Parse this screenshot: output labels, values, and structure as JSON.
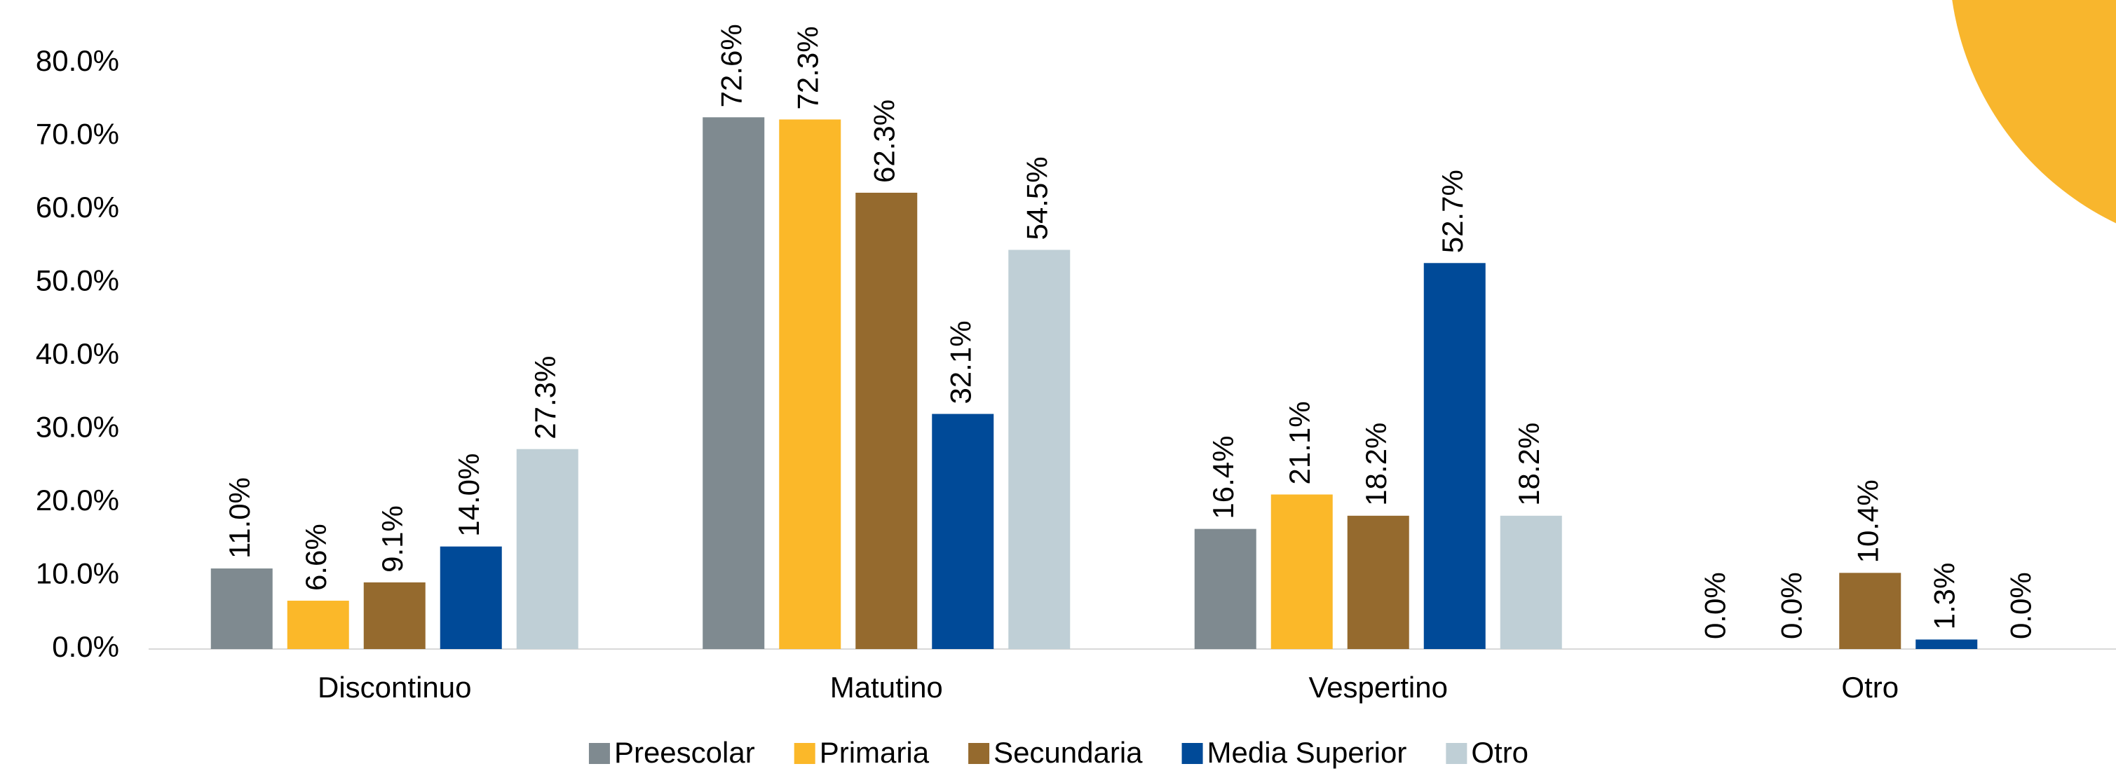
{
  "chart_data": {
    "type": "bar",
    "categories": [
      "Discontinuo",
      "Matutino",
      "Vespertino",
      "Otro"
    ],
    "series": [
      {
        "name": "Preescolar",
        "color": "#7f8a90",
        "values": [
          11.0,
          72.6,
          16.4,
          0.0
        ],
        "value_labels": [
          "11.0%",
          "72.6%",
          "16.4%",
          "0.0%"
        ]
      },
      {
        "name": "Primaria",
        "color": "#fbb829",
        "values": [
          6.6,
          72.3,
          21.1,
          0.0
        ],
        "value_labels": [
          "6.6%",
          "72.3%",
          "21.1%",
          "0.0%"
        ]
      },
      {
        "name": "Secundaria",
        "color": "#956a2e",
        "values": [
          9.1,
          62.3,
          18.2,
          10.4
        ],
        "value_labels": [
          "9.1%",
          "62.3%",
          "18.2%",
          "10.4%"
        ]
      },
      {
        "name": "Media Superior",
        "color": "#004a98",
        "values": [
          14.0,
          32.1,
          52.7,
          1.3
        ],
        "value_labels": [
          "14.0%",
          "32.1%",
          "52.7%",
          "1.3%"
        ]
      },
      {
        "name": "Otro",
        "color": "#bfcfd6",
        "values": [
          27.3,
          54.5,
          18.2,
          0.0
        ],
        "value_labels": [
          "27.3%",
          "54.5%",
          "18.2%",
          "0.0%"
        ]
      }
    ],
    "ylim": [
      0,
      80
    ],
    "yticks": [
      {
        "value": 0,
        "label": "0.0%"
      },
      {
        "value": 10,
        "label": "10.0%"
      },
      {
        "value": 20,
        "label": "20.0%"
      },
      {
        "value": 30,
        "label": "30.0%"
      },
      {
        "value": 40,
        "label": "40.0%"
      },
      {
        "value": 50,
        "label": "50.0%"
      },
      {
        "value": 60,
        "label": "60.0%"
      },
      {
        "value": 70,
        "label": "70.0%"
      },
      {
        "value": 80,
        "label": "80.0%"
      }
    ],
    "grid": false,
    "legend": "bottom"
  }
}
